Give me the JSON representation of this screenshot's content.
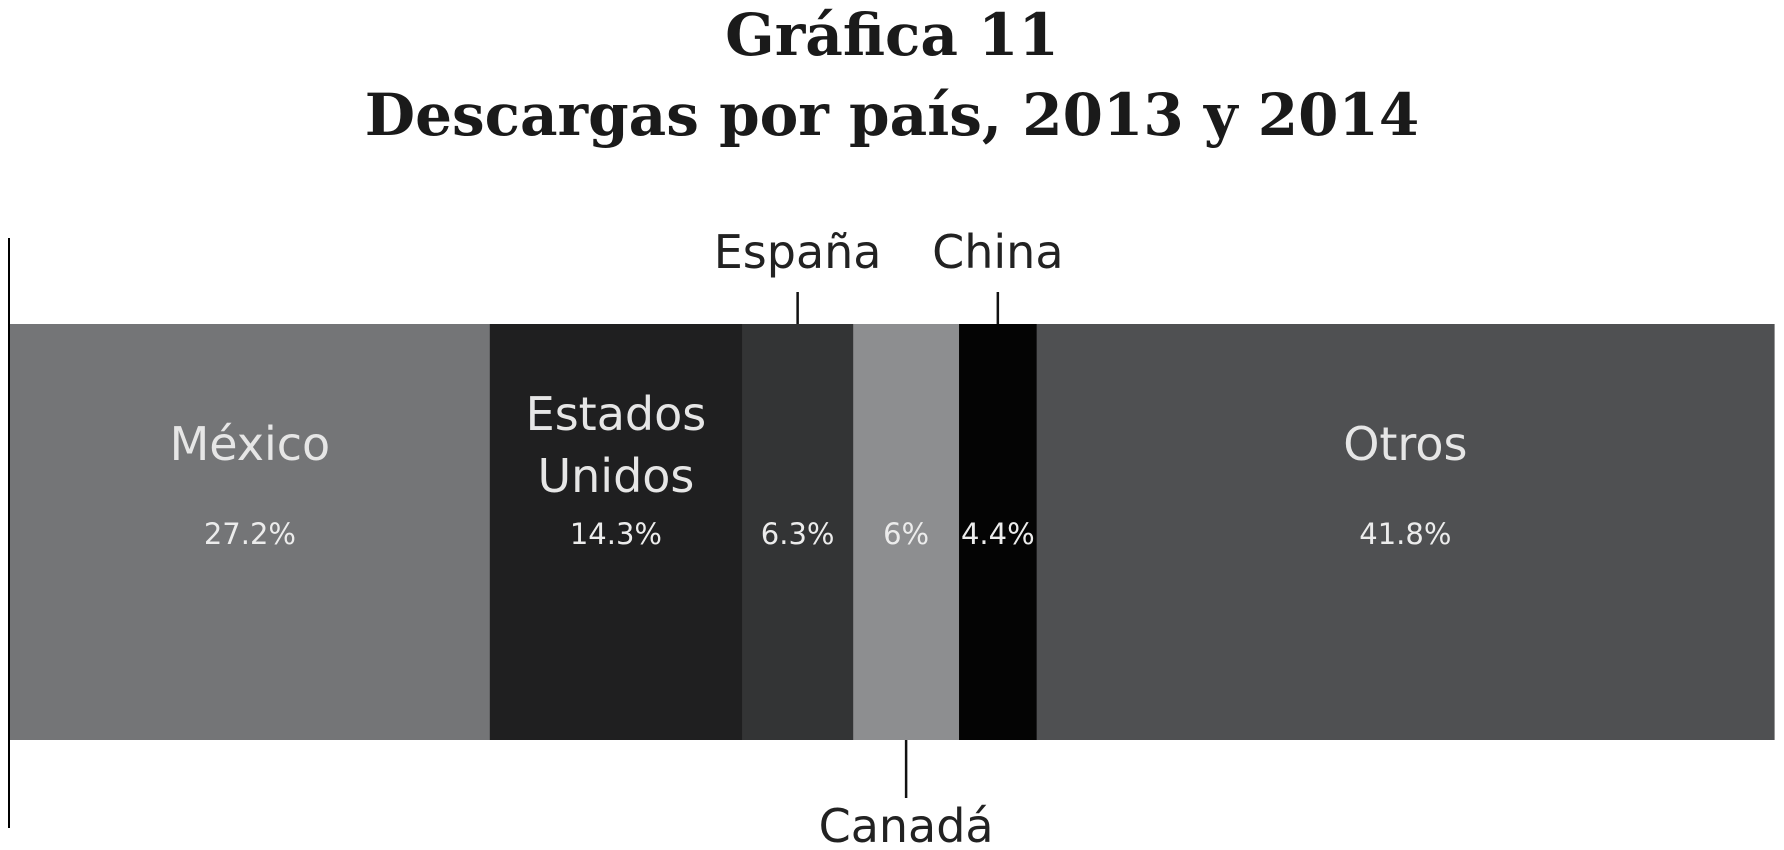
{
  "chart_data": {
    "type": "bar",
    "orientation": "horizontal-stacked-100",
    "title": "Gráfica 11",
    "subtitle": "Descargas por país, 2013 y 2014",
    "categories": [
      "México",
      "Estados Unidos",
      "España",
      "Canadá",
      "China",
      "Otros"
    ],
    "values": [
      27.2,
      14.3,
      6.3,
      6,
      4.4,
      41.8
    ],
    "value_labels": [
      "27.2%",
      "14.3%",
      "6.3%",
      "6%",
      "4.4%",
      "41.8%"
    ],
    "label_lines": [
      [
        "México"
      ],
      [
        "Estados",
        "Unidos"
      ],
      [
        "España"
      ],
      [
        "Canadá"
      ],
      [
        "China"
      ],
      [
        "Otros"
      ]
    ],
    "label_position": [
      "inside",
      "inside",
      "above",
      "below",
      "above",
      "inside"
    ],
    "colors": [
      "#747577",
      "#1f1f20",
      "#333435",
      "#8d8e90",
      "#040404",
      "#4f5052"
    ],
    "units": "%"
  }
}
